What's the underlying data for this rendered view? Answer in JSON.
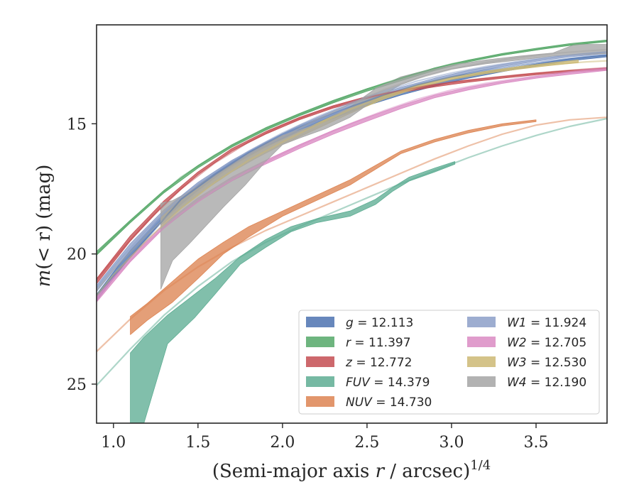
{
  "chart_data": {
    "type": "line",
    "xlabel_main": "(Semi-major axis ",
    "xlabel_var": "r",
    "xlabel_unit": " / arcsec)",
    "xlabel_exp": "1/4",
    "ylabel_m": "m",
    "ylabel_arg": "(< r)",
    "ylabel_unit": " (mag)",
    "xlim": [
      0.9,
      3.92
    ],
    "ylim": [
      26.5,
      11.2
    ],
    "y_inverted": true,
    "grid": false,
    "legend_position": "lower-right",
    "x_ticks": [
      "1.0",
      "1.5",
      "2.0",
      "2.5",
      "3.0",
      "3.5"
    ],
    "x_tick_values": [
      1.0,
      1.5,
      2.0,
      2.5,
      3.0,
      3.5
    ],
    "y_ticks": [
      "15",
      "20",
      "25"
    ],
    "y_tick_values": [
      15,
      20,
      25
    ],
    "series": [
      {
        "name": "g",
        "total": "= 12.113",
        "color": "#4c72b0",
        "fit": {
          "x": [
            0.9,
            1.0,
            1.2,
            1.4,
            1.6,
            1.8,
            2.0,
            2.2,
            2.4,
            2.6,
            2.8,
            3.0,
            3.2,
            3.4,
            3.6,
            3.8,
            3.92
          ],
          "y": [
            21.6,
            20.85,
            19.4,
            17.9,
            16.95,
            16.1,
            15.4,
            14.85,
            14.35,
            13.9,
            13.5,
            13.2,
            12.95,
            12.75,
            12.57,
            12.42,
            12.35
          ]
        },
        "band_x": [
          0.9,
          1.1,
          1.3,
          1.5,
          1.7,
          1.9,
          2.1,
          2.3,
          2.5,
          2.7,
          2.9,
          3.1,
          3.3,
          3.5,
          3.7,
          3.92
        ],
        "band_upper": [
          21.55,
          19.85,
          18.45,
          17.35,
          16.45,
          15.75,
          15.15,
          14.65,
          14.15,
          13.75,
          13.45,
          13.15,
          12.9,
          12.7,
          12.5,
          12.35
        ],
        "band_lower": [
          21.8,
          20.1,
          18.65,
          17.55,
          16.6,
          15.9,
          15.3,
          14.8,
          14.3,
          13.9,
          13.55,
          13.25,
          13.0,
          12.78,
          12.58,
          12.43
        ]
      },
      {
        "name": "r",
        "total": "= 11.397",
        "color": "#55a868",
        "fit": {
          "x": [
            0.9,
            1.0,
            1.2,
            1.4,
            1.6,
            1.8,
            2.0,
            2.2,
            2.4,
            2.6,
            2.8,
            3.0,
            3.2,
            3.4,
            3.6,
            3.8,
            3.92
          ],
          "y": [
            20.0,
            19.35,
            18.15,
            17.05,
            16.2,
            15.5,
            14.9,
            14.4,
            13.9,
            13.45,
            13.05,
            12.7,
            12.45,
            12.25,
            12.05,
            11.9,
            11.82
          ]
        },
        "band_x": [
          0.9,
          1.1,
          1.3,
          1.5,
          1.7,
          1.9,
          2.1,
          2.3,
          2.5,
          2.7,
          2.9,
          3.1,
          3.3,
          3.5,
          3.7,
          3.92
        ],
        "band_upper": [
          19.9,
          18.7,
          17.55,
          16.6,
          15.8,
          15.15,
          14.6,
          14.1,
          13.65,
          13.25,
          12.85,
          12.55,
          12.3,
          12.1,
          11.92,
          11.78
        ],
        "band_lower": [
          20.05,
          18.8,
          17.65,
          16.7,
          15.9,
          15.25,
          14.7,
          14.2,
          13.75,
          13.35,
          12.95,
          12.62,
          12.37,
          12.17,
          11.99,
          11.85
        ]
      },
      {
        "name": "z",
        "total": "= 12.772",
        "color": "#c44e52",
        "fit": {
          "x": [
            0.9,
            1.0,
            1.2,
            1.4,
            1.6,
            1.8,
            2.0,
            2.2,
            2.4,
            2.6,
            2.8,
            3.0,
            3.2,
            3.4,
            3.6,
            3.8,
            3.92
          ],
          "y": [
            21.0,
            20.2,
            18.75,
            17.5,
            16.5,
            15.7,
            15.05,
            14.55,
            14.15,
            13.85,
            13.6,
            13.4,
            13.25,
            13.12,
            13.0,
            12.9,
            12.85
          ]
        },
        "band_x": [
          0.9,
          1.1,
          1.3,
          1.5,
          1.7,
          1.9,
          2.1,
          2.3,
          2.5,
          2.7,
          2.9,
          3.1,
          3.3,
          3.5,
          3.7,
          3.92
        ],
        "band_upper": [
          20.95,
          19.3,
          17.95,
          16.85,
          15.95,
          15.3,
          14.75,
          14.3,
          13.95,
          13.7,
          13.5,
          13.32,
          13.18,
          13.05,
          12.95,
          12.85
        ],
        "band_lower": [
          21.15,
          19.5,
          18.1,
          16.95,
          16.05,
          15.4,
          14.85,
          14.4,
          14.05,
          13.8,
          13.58,
          13.4,
          13.25,
          13.12,
          13.02,
          12.92
        ]
      },
      {
        "name": "FUV",
        "total": "= 14.379",
        "color": "#5ead93",
        "fit": {
          "x": [
            0.9,
            1.1,
            1.3,
            1.5,
            1.7,
            1.9,
            2.1,
            2.3,
            2.5,
            2.7,
            2.9,
            3.1,
            3.3,
            3.5,
            3.7,
            3.92
          ],
          "y": [
            25.05,
            23.65,
            22.35,
            21.25,
            20.3,
            19.55,
            18.95,
            18.4,
            17.85,
            17.3,
            16.8,
            16.3,
            15.85,
            15.45,
            15.1,
            14.8
          ]
        },
        "band_x": [
          1.1,
          1.18,
          1.32,
          1.48,
          1.6,
          1.75,
          1.9,
          2.05,
          2.2,
          2.4,
          2.55,
          2.65,
          2.75,
          2.9,
          3.02
        ],
        "band_upper": [
          23.8,
          23.2,
          22.35,
          21.55,
          20.95,
          20.1,
          19.45,
          18.95,
          18.65,
          18.35,
          17.9,
          17.45,
          17.05,
          16.7,
          16.45
        ],
        "band_lower": [
          26.5,
          26.5,
          23.45,
          22.45,
          21.55,
          20.4,
          19.75,
          19.15,
          18.8,
          18.55,
          18.1,
          17.6,
          17.2,
          16.85,
          16.55
        ]
      },
      {
        "name": "NUV",
        "total": "= 14.730",
        "color": "#dd8452",
        "fit": {
          "x": [
            0.9,
            1.1,
            1.3,
            1.5,
            1.7,
            1.9,
            2.1,
            2.3,
            2.5,
            2.7,
            2.9,
            3.1,
            3.3,
            3.5,
            3.7,
            3.92
          ],
          "y": [
            23.75,
            22.5,
            21.4,
            20.5,
            19.75,
            19.1,
            18.55,
            18.0,
            17.45,
            16.9,
            16.35,
            15.85,
            15.4,
            15.05,
            14.85,
            14.75
          ]
        },
        "band_x": [
          1.1,
          1.2,
          1.35,
          1.5,
          1.65,
          1.8,
          2.0,
          2.2,
          2.4,
          2.55,
          2.7,
          2.9,
          3.1,
          3.3,
          3.5
        ],
        "band_upper": [
          22.4,
          21.9,
          21.05,
          20.2,
          19.55,
          18.95,
          18.35,
          17.75,
          17.15,
          16.6,
          16.05,
          15.6,
          15.25,
          15.0,
          14.85
        ],
        "band_lower": [
          23.1,
          22.55,
          21.85,
          20.95,
          20.0,
          19.35,
          18.55,
          17.95,
          17.35,
          16.75,
          16.15,
          15.7,
          15.35,
          15.08,
          14.92
        ]
      },
      {
        "name": "W1",
        "total": "= 11.924",
        "color": "#8c9fc8",
        "fit": {
          "x": [
            0.9,
            1.0,
            1.2,
            1.4,
            1.6,
            1.8,
            2.0,
            2.2,
            2.4,
            2.6,
            2.8,
            3.0,
            3.2,
            3.4,
            3.6,
            3.8,
            3.92
          ],
          "y": [
            21.3,
            20.5,
            19.05,
            17.8,
            16.85,
            16.05,
            15.35,
            14.75,
            14.2,
            13.75,
            13.35,
            13.05,
            12.8,
            12.6,
            12.43,
            12.3,
            12.25
          ]
        },
        "band_x": [
          0.9,
          1.1,
          1.3,
          1.5,
          1.7,
          1.9,
          2.1,
          2.3,
          2.5,
          2.7,
          2.9,
          3.1,
          3.3,
          3.5,
          3.7,
          3.92
        ],
        "band_upper": [
          21.2,
          19.6,
          18.3,
          17.25,
          16.4,
          15.7,
          15.05,
          14.5,
          14.0,
          13.6,
          13.25,
          12.95,
          12.72,
          12.52,
          12.35,
          12.22
        ],
        "band_lower": [
          21.45,
          19.85,
          18.5,
          17.45,
          16.55,
          15.85,
          15.2,
          14.65,
          14.15,
          13.72,
          13.35,
          13.05,
          12.8,
          12.6,
          12.43,
          12.3
        ]
      },
      {
        "name": "W2",
        "total": "= 12.705",
        "color": "#da8bc3",
        "fit": {
          "x": [
            0.9,
            1.0,
            1.2,
            1.4,
            1.6,
            1.8,
            2.0,
            2.2,
            2.4,
            2.6,
            2.8,
            3.0,
            3.2,
            3.4,
            3.6,
            3.8,
            3.92
          ],
          "y": [
            21.75,
            20.95,
            19.55,
            18.45,
            17.55,
            16.8,
            16.15,
            15.55,
            15.0,
            14.5,
            14.05,
            13.7,
            13.45,
            13.25,
            13.08,
            12.92,
            12.85
          ]
        },
        "band_x": [
          0.9,
          1.1,
          1.3,
          1.5,
          1.7,
          1.9,
          2.1,
          2.3,
          2.5,
          2.7,
          2.9,
          3.1,
          3.3,
          3.5,
          3.7,
          3.92
        ],
        "band_upper": [
          21.65,
          20.1,
          18.85,
          17.85,
          17.05,
          16.4,
          15.8,
          15.25,
          14.75,
          14.3,
          13.9,
          13.6,
          13.37,
          13.18,
          13.02,
          12.88
        ],
        "band_lower": [
          21.85,
          20.3,
          19.0,
          18.0,
          17.2,
          16.55,
          15.95,
          15.4,
          14.9,
          14.42,
          14.0,
          13.7,
          13.45,
          13.25,
          13.1,
          12.95
        ]
      },
      {
        "name": "W3",
        "total": "= 12.530",
        "color": "#ccb974",
        "fit": {
          "x": [
            0.9,
            1.0,
            1.2,
            1.4,
            1.6,
            1.8,
            2.0,
            2.2,
            2.4,
            2.6,
            2.8,
            3.0,
            3.2,
            3.4,
            3.6,
            3.8,
            3.92
          ],
          "y": [
            21.6,
            20.8,
            19.45,
            18.25,
            17.25,
            16.4,
            15.7,
            15.05,
            14.45,
            13.95,
            13.55,
            13.25,
            13.02,
            12.85,
            12.72,
            12.62,
            12.58
          ]
        },
        "band_x": [
          1.28,
          1.4,
          1.55,
          1.7,
          1.85,
          2.0,
          2.2,
          2.4,
          2.6,
          2.8,
          3.0,
          3.2,
          3.4,
          3.6,
          3.75
        ],
        "band_upper": [
          18.6,
          17.95,
          17.25,
          16.6,
          16.05,
          15.6,
          15.0,
          14.4,
          13.9,
          13.5,
          13.2,
          12.98,
          12.8,
          12.65,
          12.55
        ],
        "band_lower": [
          18.9,
          18.25,
          17.5,
          16.85,
          16.3,
          15.8,
          15.2,
          14.6,
          14.05,
          13.62,
          13.3,
          13.08,
          12.9,
          12.75,
          12.65
        ]
      },
      {
        "name": "W4",
        "total": "= 12.190",
        "color": "#a5a5a5",
        "fit": {
          "x": [
            0.9,
            1.0,
            1.2,
            1.4,
            1.6,
            1.8,
            2.0,
            2.2,
            2.4,
            2.6,
            2.8,
            3.0,
            3.2,
            3.4,
            3.6,
            3.8,
            3.92
          ],
          "y": [
            21.4,
            20.6,
            19.25,
            18.05,
            17.05,
            16.2,
            15.5,
            14.85,
            14.25,
            13.7,
            13.25,
            12.9,
            12.65,
            12.45,
            12.3,
            12.2,
            12.15
          ]
        },
        "band_x": [
          1.28,
          1.35,
          1.45,
          1.55,
          1.65,
          1.78,
          1.9,
          2.0,
          2.1,
          2.25,
          2.4,
          2.55,
          2.7,
          2.85,
          3.0,
          3.2,
          3.4,
          3.6,
          3.73,
          3.92
        ],
        "band_upper": [
          18.05,
          17.95,
          17.6,
          17.15,
          16.75,
          16.2,
          15.75,
          15.45,
          15.25,
          14.9,
          14.35,
          13.65,
          13.2,
          12.95,
          12.75,
          12.55,
          12.4,
          12.28,
          11.95,
          11.95
        ],
        "band_lower": [
          21.35,
          20.25,
          19.6,
          18.9,
          18.2,
          17.35,
          16.45,
          15.8,
          15.55,
          15.2,
          14.75,
          14.05,
          13.5,
          13.15,
          12.9,
          12.7,
          12.55,
          12.4,
          12.35,
          12.3
        ]
      }
    ]
  }
}
